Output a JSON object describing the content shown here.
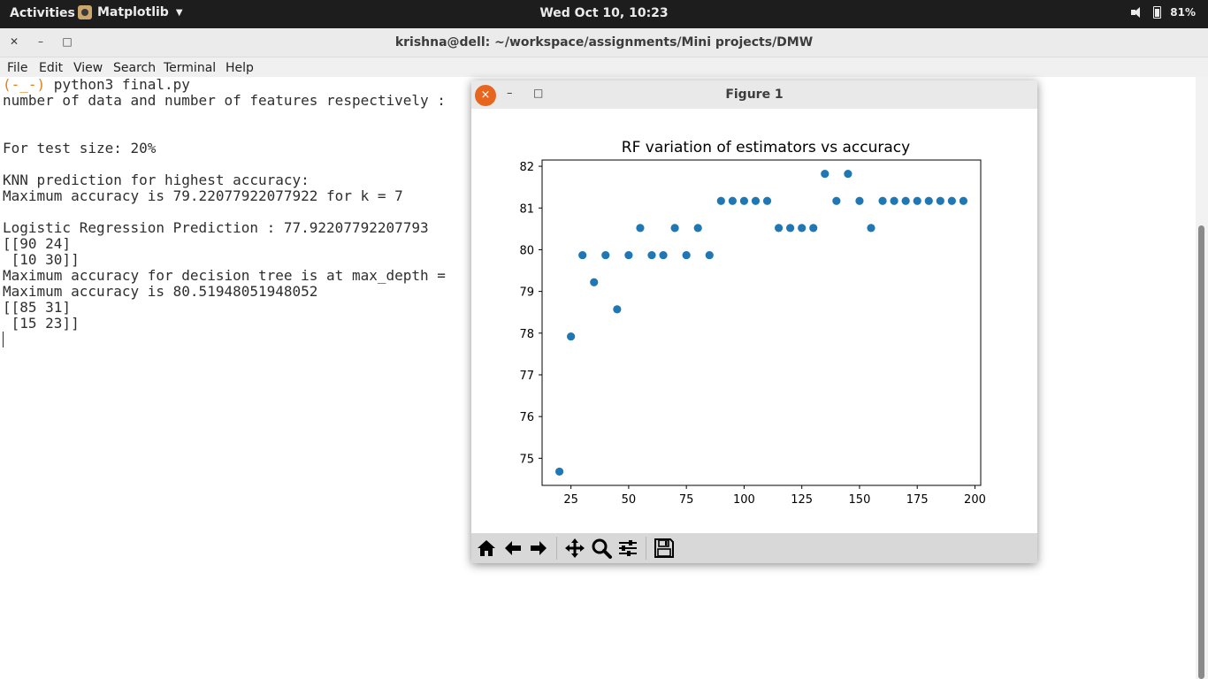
{
  "topbar": {
    "activities": "Activities",
    "app_name": "Matplotlib",
    "clock": "Wed Oct 10, 10:23",
    "battery": "81%"
  },
  "terminal": {
    "title": "krishna@dell: ~/workspace/assignments/Mini projects/DMW",
    "menu": [
      "File",
      "Edit",
      "View",
      "Search",
      "Terminal",
      "Help"
    ],
    "prompt": "(-_-)",
    "command": " python3 final.py",
    "lines": [
      "number of data and number of features respectively :",
      "",
      "",
      "For test size: 20%",
      "",
      "KNN prediction for highest accuracy:",
      "Maximum accuracy is 79.22077922077922 for k = 7",
      "",
      "Logistic Regression Prediction : 77.92207792207793",
      "[[90 24]",
      " [10 30]]",
      "Maximum accuracy for decision tree is at max_depth =",
      "Maximum accuracy is 80.51948051948052",
      "[[85 31]",
      " [15 23]]"
    ]
  },
  "figure": {
    "title": "Figure 1",
    "close_label": "×",
    "min_label": "–",
    "max_label": "□"
  },
  "chart_data": {
    "type": "scatter",
    "title": "RF variation of estimators vs accuracy",
    "xlabel": "",
    "ylabel": "",
    "xlim": [
      12.5,
      202.5
    ],
    "ylim": [
      74.35,
      82.15
    ],
    "xticks": [
      25,
      50,
      75,
      100,
      125,
      150,
      175,
      200
    ],
    "yticks": [
      75,
      76,
      77,
      78,
      79,
      80,
      81,
      82
    ],
    "grid": false,
    "color": "#1f77b4",
    "x": [
      20,
      25,
      30,
      35,
      40,
      45,
      50,
      55,
      60,
      65,
      70,
      75,
      80,
      85,
      90,
      95,
      100,
      105,
      110,
      115,
      120,
      125,
      130,
      135,
      140,
      145,
      150,
      155,
      160,
      165,
      170,
      175,
      180,
      185,
      190,
      195
    ],
    "y": [
      74.68,
      77.92,
      79.87,
      79.22,
      79.87,
      78.57,
      79.87,
      80.52,
      79.87,
      79.87,
      80.52,
      79.87,
      80.52,
      79.87,
      81.17,
      81.17,
      81.17,
      81.17,
      81.17,
      80.52,
      80.52,
      80.52,
      80.52,
      81.82,
      81.17,
      81.82,
      81.17,
      80.52,
      81.17,
      81.17,
      81.17,
      81.17,
      81.17,
      81.17,
      81.17,
      81.17
    ]
  },
  "toolbar": {
    "icons": [
      "home-icon",
      "back-icon",
      "forward-icon",
      "pan-icon",
      "zoom-icon",
      "subplots-icon",
      "save-icon"
    ]
  }
}
